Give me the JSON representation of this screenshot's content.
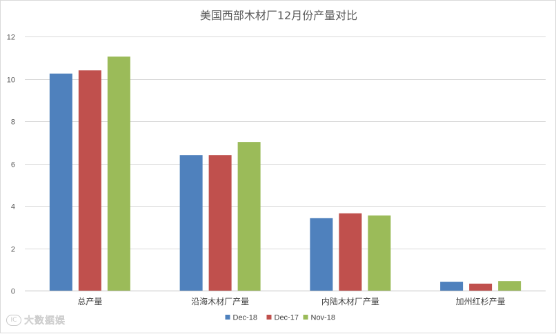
{
  "chart_data": {
    "type": "bar",
    "title": "美国西部木材厂12月份产量对比",
    "categories": [
      "总产量",
      "沿海木材厂产量",
      "内陆木材厂产量",
      "加州红杉产量"
    ],
    "series": [
      {
        "name": "Dec-18",
        "color": "#4f81bd",
        "values": [
          10.25,
          6.4,
          3.42,
          0.42
        ]
      },
      {
        "name": "Dec-17",
        "color": "#c0504d",
        "values": [
          10.4,
          6.4,
          3.65,
          0.33
        ]
      },
      {
        "name": "Nov-18",
        "color": "#9bbb59",
        "values": [
          11.05,
          7.02,
          3.55,
          0.45
        ]
      }
    ],
    "ylim": [
      0,
      12
    ],
    "yticks": [
      0,
      2,
      4,
      6,
      8,
      10,
      12
    ],
    "grid": true,
    "legend_position": "bottom-center"
  },
  "watermark": {
    "logo_text": "IC",
    "text": "大数据娱"
  }
}
